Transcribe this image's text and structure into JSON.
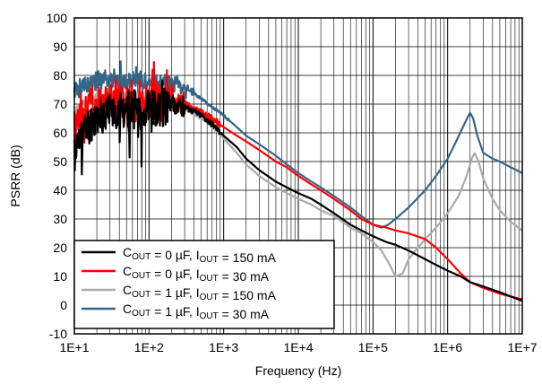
{
  "chart_data": {
    "type": "line",
    "title": "",
    "xlabel": "Frequency (Hz)",
    "ylabel": "PSRR (dB)",
    "x_scale": "log",
    "xlim": [
      10,
      10000000
    ],
    "ylim": [
      -10,
      100
    ],
    "grid": true,
    "x_tick_labels": [
      "1E+1",
      "1E+2",
      "1E+3",
      "1E+4",
      "1E+5",
      "1E+6",
      "1E+7"
    ],
    "y_tick_labels": [
      "-10",
      "0",
      "10",
      "20",
      "30",
      "40",
      "50",
      "60",
      "70",
      "80",
      "90",
      "100"
    ],
    "legend_position": "bottom-left",
    "legend": [
      {
        "c_main": "C",
        "c_sub": "OUT",
        "c_val": " = 0 µF, ",
        "i_main": "I",
        "i_sub": "OUT",
        "i_val": " = 150 mA"
      },
      {
        "c_main": "C",
        "c_sub": "OUT",
        "c_val": " = 0 µF, ",
        "i_main": "I",
        "i_sub": "OUT",
        "i_val": " = 30 mA"
      },
      {
        "c_main": "C",
        "c_sub": "OUT",
        "c_val": " = 1 µF, ",
        "i_main": "I",
        "i_sub": "OUT",
        "i_val": " = 150 mA"
      },
      {
        "c_main": "C",
        "c_sub": "OUT",
        "c_val": " = 1 µF, ",
        "i_main": "I",
        "i_sub": "OUT",
        "i_val": " = 30 mA"
      }
    ],
    "series": [
      {
        "color": "#000000",
        "noise_amp": 14,
        "noise_end": 300,
        "x": [
          10,
          12,
          15,
          20,
          30,
          50,
          80,
          100,
          150,
          200,
          300,
          500,
          700,
          1000,
          1500,
          2000,
          3000,
          5000,
          7000,
          10000,
          15000,
          20000,
          30000,
          50000,
          70000,
          100000,
          150000,
          200000,
          300000,
          500000,
          700000,
          1000000,
          1500000,
          2000000,
          3000000,
          5000000,
          7000000,
          10000000
        ],
        "y": [
          52,
          58,
          62,
          66,
          68,
          68,
          68,
          68,
          69,
          70,
          69,
          66,
          63,
          59,
          55,
          51,
          47,
          43,
          41,
          39,
          37,
          35,
          32,
          28,
          26,
          24,
          22,
          21,
          19,
          16,
          14,
          12,
          10,
          8,
          6.5,
          4.5,
          3,
          1.5
        ]
      },
      {
        "color": "#ff0000",
        "noise_amp": 16,
        "noise_end": 300,
        "x": [
          10,
          12,
          15,
          20,
          30,
          50,
          80,
          100,
          150,
          200,
          300,
          500,
          700,
          1000,
          1500,
          2000,
          3000,
          5000,
          7000,
          10000,
          15000,
          20000,
          30000,
          50000,
          70000,
          100000,
          150000,
          200000,
          300000,
          500000,
          700000,
          1000000,
          1500000,
          2000000,
          3000000,
          5000000,
          7000000,
          10000000
        ],
        "y": [
          62,
          66,
          68,
          70,
          71,
          71,
          71,
          71,
          71,
          71,
          70,
          67,
          65,
          62,
          59,
          57,
          54,
          50,
          48,
          45,
          42,
          40,
          37,
          33,
          30,
          28,
          27,
          26,
          25,
          23,
          20,
          16,
          11,
          8,
          6,
          4,
          3,
          2
        ]
      },
      {
        "color": "#aaaaaa",
        "noise_amp": 3,
        "noise_end": 300,
        "x": [
          10,
          12,
          15,
          20,
          30,
          50,
          80,
          100,
          150,
          200,
          300,
          500,
          700,
          1000,
          1500,
          2000,
          3000,
          5000,
          7000,
          10000,
          15000,
          20000,
          30000,
          50000,
          70000,
          100000,
          130000,
          160000,
          200000,
          250000,
          300000,
          400000,
          500000,
          700000,
          1000000,
          1400000,
          1800000,
          2100000,
          2300000,
          2600000,
          3000000,
          4000000,
          5000000,
          7000000,
          10000000
        ],
        "y": [
          67,
          69,
          71,
          72,
          73,
          73,
          72,
          72,
          71,
          70,
          68,
          65,
          62,
          58,
          53,
          49,
          45,
          41,
          39,
          37,
          35,
          33,
          31,
          27,
          25,
          22,
          19,
          15,
          10,
          11,
          16,
          20,
          23,
          27,
          32,
          38,
          45,
          51,
          53,
          50,
          44,
          37,
          33,
          29,
          26
        ]
      },
      {
        "color": "#336688",
        "noise_amp": 7,
        "noise_end": 400,
        "x": [
          10,
          12,
          15,
          20,
          30,
          50,
          80,
          100,
          150,
          200,
          300,
          500,
          700,
          1000,
          1500,
          2000,
          3000,
          5000,
          7000,
          10000,
          15000,
          20000,
          30000,
          50000,
          70000,
          100000,
          130000,
          160000,
          200000,
          300000,
          500000,
          700000,
          1000000,
          1300000,
          1600000,
          1900000,
          2000000,
          2200000,
          2500000,
          3000000,
          4000000,
          5000000,
          7000000,
          10000000
        ],
        "y": [
          74,
          76,
          77,
          78,
          78,
          78,
          78,
          78,
          77,
          77,
          76,
          72,
          69,
          66,
          62,
          59,
          56,
          52,
          49,
          46,
          43,
          41,
          38,
          34,
          31,
          28,
          27,
          28,
          30,
          34,
          40,
          45,
          51,
          57,
          62,
          66,
          67,
          65,
          59,
          53,
          51,
          50,
          48,
          46
        ]
      }
    ]
  }
}
